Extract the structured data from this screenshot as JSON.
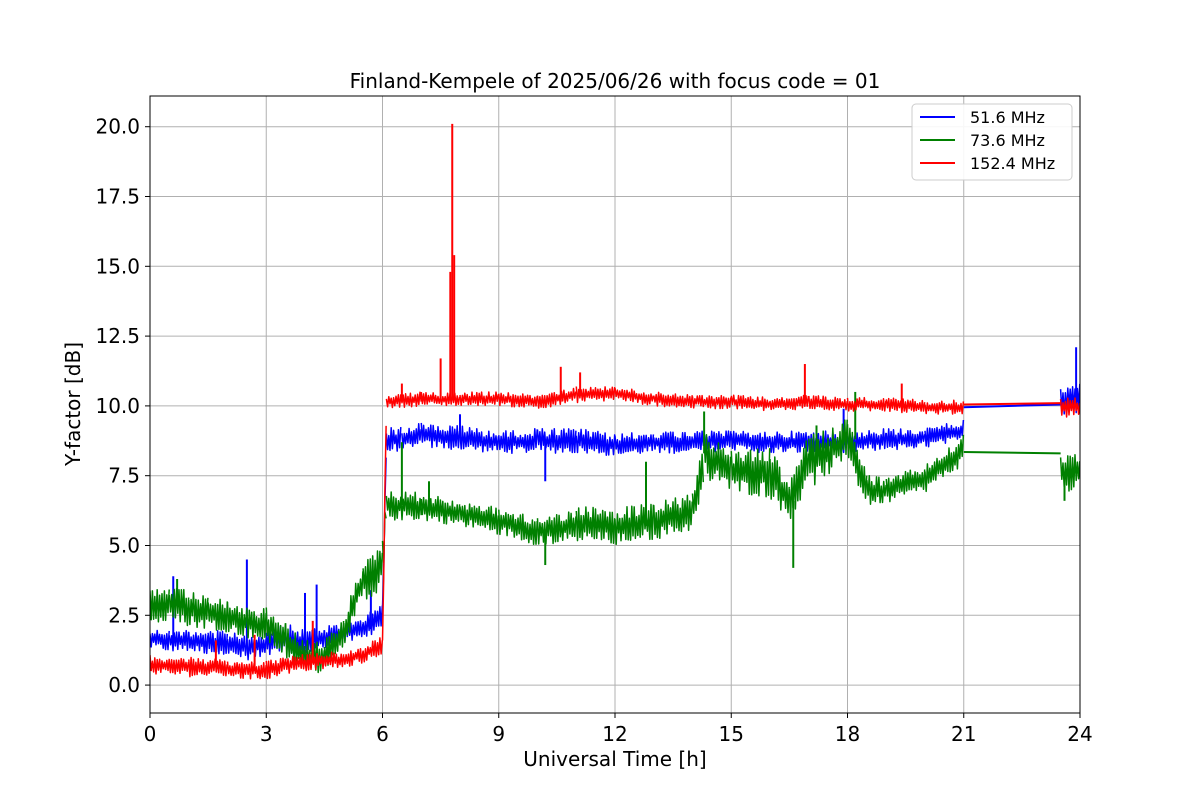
{
  "chart_data": {
    "type": "line",
    "title": "Finland-Kempele of 2025/06/26 with focus code = 01",
    "xlabel": "Universal Time [h]",
    "ylabel": "Y-factor [dB]",
    "xlim": [
      0,
      24
    ],
    "ylim": [
      -1,
      21.1
    ],
    "xticks": [
      0,
      3,
      6,
      9,
      12,
      15,
      18,
      21,
      24
    ],
    "xtick_labels": [
      "0",
      "3",
      "6",
      "9",
      "12",
      "15",
      "18",
      "21",
      "24"
    ],
    "yticks": [
      0,
      2.5,
      5,
      7.5,
      10,
      12.5,
      15,
      17.5,
      20
    ],
    "ytick_labels": [
      "0.0",
      "2.5",
      "5.0",
      "7.5",
      "10.0",
      "12.5",
      "15.0",
      "17.5",
      "20.0"
    ],
    "grid": true,
    "legend_position": "top-right",
    "series": [
      {
        "name": " 51.6 MHz",
        "color": "#0000ff",
        "points": [
          [
            0,
            1.3,
            2.0
          ],
          [
            0.5,
            1.2,
            2.0
          ],
          [
            1,
            1.2,
            2.0
          ],
          [
            1.5,
            1.1,
            2.0
          ],
          [
            2,
            1.0,
            1.9
          ],
          [
            2.5,
            0.9,
            1.8
          ],
          [
            3,
            1.0,
            1.9
          ],
          [
            3.5,
            1.1,
            2.2
          ],
          [
            4,
            1.0,
            2.0
          ],
          [
            4.5,
            1.3,
            2.1
          ],
          [
            5,
            1.5,
            2.2
          ],
          [
            5.5,
            1.6,
            2.4
          ],
          [
            6,
            2.0,
            3.0
          ],
          [
            6.1,
            8.3,
            9.2
          ],
          [
            6.5,
            8.4,
            9.3
          ],
          [
            7,
            8.5,
            9.4
          ],
          [
            8,
            8.4,
            9.3
          ],
          [
            9,
            8.3,
            9.1
          ],
          [
            10,
            8.3,
            9.2
          ],
          [
            11,
            8.3,
            9.2
          ],
          [
            12,
            8.2,
            9.0
          ],
          [
            13,
            8.3,
            9.1
          ],
          [
            14,
            8.3,
            9.1
          ],
          [
            15,
            8.4,
            9.1
          ],
          [
            16,
            8.3,
            9.1
          ],
          [
            17,
            8.3,
            9.1
          ],
          [
            18,
            8.3,
            9.1
          ],
          [
            19,
            8.4,
            9.2
          ],
          [
            20,
            8.5,
            9.2
          ],
          [
            21,
            8.7,
            9.5
          ],
          [
            23.5,
            9.7,
            10.6
          ],
          [
            24,
            9.7,
            10.8
          ]
        ],
        "spikes": [
          [
            0.6,
            3.9
          ],
          [
            2.5,
            4.5
          ],
          [
            4.3,
            3.6
          ],
          [
            4.0,
            3.3
          ],
          [
            5.7,
            3.4
          ],
          [
            8.0,
            9.7
          ],
          [
            10.2,
            7.3
          ],
          [
            17.9,
            9.9
          ],
          [
            23.9,
            12.1
          ]
        ],
        "gap_line": [
          [
            21,
            9.95
          ],
          [
            23.5,
            10.05
          ]
        ]
      },
      {
        "name": " 73.6 MHz",
        "color": "#008000",
        "points": [
          [
            0,
            2.1,
            3.5
          ],
          [
            0.5,
            2.2,
            3.5
          ],
          [
            1,
            2.1,
            3.4
          ],
          [
            1.5,
            2.0,
            3.2
          ],
          [
            2,
            1.9,
            3.0
          ],
          [
            2.5,
            1.7,
            2.8
          ],
          [
            3,
            1.5,
            2.8
          ],
          [
            3.5,
            1.0,
            2.3
          ],
          [
            4,
            0.3,
            1.6
          ],
          [
            4.5,
            0.5,
            1.6
          ],
          [
            5,
            1.4,
            2.4
          ],
          [
            5.5,
            3.0,
            4.6
          ],
          [
            6,
            3.3,
            5.4
          ],
          [
            6.1,
            5.9,
            7.0
          ],
          [
            7,
            5.9,
            6.9
          ],
          [
            8,
            5.7,
            6.6
          ],
          [
            9,
            5.4,
            6.4
          ],
          [
            10,
            5.0,
            6.0
          ],
          [
            11,
            5.1,
            6.4
          ],
          [
            12,
            5.0,
            6.4
          ],
          [
            13,
            5.2,
            6.5
          ],
          [
            14,
            5.5,
            6.9
          ],
          [
            14.3,
            7.4,
            9.2
          ],
          [
            15,
            6.9,
            8.4
          ],
          [
            16,
            6.7,
            8.5
          ],
          [
            16.5,
            5.9,
            7.3
          ],
          [
            17,
            7.0,
            9.0
          ],
          [
            18,
            8.0,
            9.6
          ],
          [
            18.5,
            6.4,
            7.6
          ],
          [
            19,
            6.5,
            7.4
          ],
          [
            20,
            6.9,
            7.9
          ],
          [
            21,
            7.9,
            9.0
          ],
          [
            23.5,
            6.9,
            8.3
          ],
          [
            24,
            7.0,
            8.4
          ]
        ],
        "spikes": [
          [
            0.7,
            3.8
          ],
          [
            6.5,
            8.7
          ],
          [
            7.2,
            7.3
          ],
          [
            10.2,
            4.3
          ],
          [
            12.8,
            8.0
          ],
          [
            14.3,
            9.8
          ],
          [
            16.6,
            4.2
          ],
          [
            17.2,
            9.3
          ],
          [
            18.2,
            10.5
          ],
          [
            23.6,
            6.6
          ]
        ],
        "gap_line": [
          [
            21,
            8.35
          ],
          [
            23.5,
            8.3
          ]
        ]
      },
      {
        "name": "152.4 MHz",
        "color": "#ff0000",
        "points": [
          [
            0,
            0.4,
            1.1
          ],
          [
            1,
            0.3,
            1.0
          ],
          [
            2,
            0.3,
            0.9
          ],
          [
            2.5,
            0.2,
            0.8
          ],
          [
            3,
            0.2,
            0.9
          ],
          [
            3.5,
            0.4,
            1.0
          ],
          [
            4,
            0.5,
            1.1
          ],
          [
            4.5,
            0.6,
            1.2
          ],
          [
            5,
            0.6,
            1.2
          ],
          [
            5.5,
            0.8,
            1.4
          ],
          [
            6,
            1.1,
            1.8
          ],
          [
            6.1,
            9.9,
            10.4
          ],
          [
            7,
            10.0,
            10.5
          ],
          [
            8,
            10.0,
            10.5
          ],
          [
            9,
            10.0,
            10.5
          ],
          [
            10,
            9.9,
            10.4
          ],
          [
            11,
            10.1,
            10.7
          ],
          [
            12,
            10.2,
            10.7
          ],
          [
            13,
            10.0,
            10.5
          ],
          [
            14,
            9.9,
            10.4
          ],
          [
            15,
            9.9,
            10.4
          ],
          [
            16,
            9.8,
            10.3
          ],
          [
            17,
            9.9,
            10.4
          ],
          [
            18,
            9.8,
            10.3
          ],
          [
            19,
            9.8,
            10.3
          ],
          [
            20,
            9.7,
            10.2
          ],
          [
            21,
            9.7,
            10.2
          ],
          [
            23.5,
            9.6,
            10.3
          ],
          [
            24,
            9.6,
            10.3
          ]
        ],
        "spikes": [
          [
            1.7,
            1.6
          ],
          [
            2.7,
            1.8
          ],
          [
            4.2,
            2.3
          ],
          [
            6.5,
            10.8
          ],
          [
            7.5,
            11.7
          ],
          [
            7.75,
            14.8
          ],
          [
            7.8,
            20.1
          ],
          [
            7.85,
            15.4
          ],
          [
            10.6,
            11.4
          ],
          [
            11.1,
            11.2
          ],
          [
            16.9,
            11.5
          ],
          [
            19.4,
            10.8
          ]
        ],
        "gap_line": [
          [
            21,
            10.05
          ],
          [
            23.5,
            10.1
          ]
        ]
      }
    ]
  }
}
